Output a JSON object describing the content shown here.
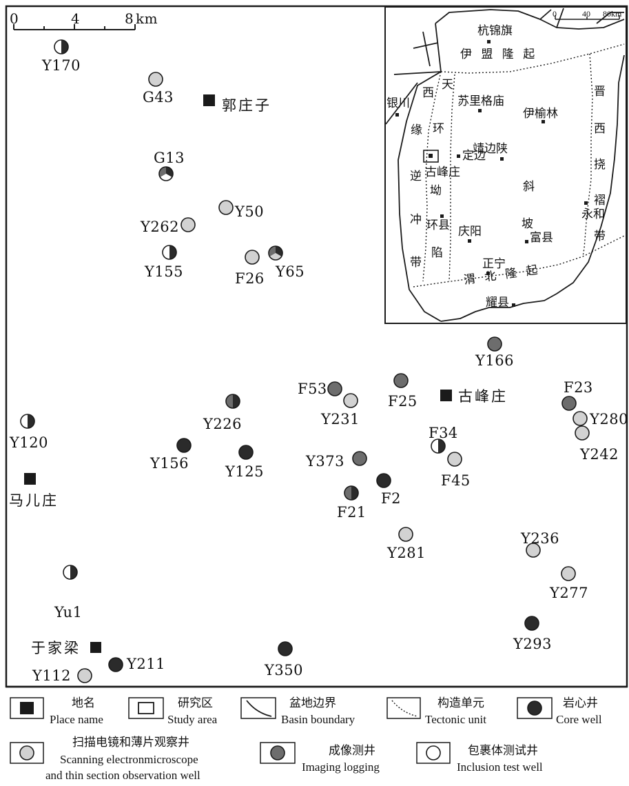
{
  "scale_bar": {
    "ticks": [
      "0",
      "4",
      "8"
    ],
    "unit": "km"
  },
  "place_names": [
    {
      "id": "guozhuangzi",
      "name": "郭庄子"
    },
    {
      "id": "gufengzhuang",
      "name": "古峰庄"
    },
    {
      "id": "maerzhuang",
      "name": "马儿庄"
    },
    {
      "id": "yujialiang",
      "name": "于家梁"
    }
  ],
  "wells": [
    {
      "name": "Y170",
      "type": "core+inclusion"
    },
    {
      "name": "G43",
      "type": "scanning"
    },
    {
      "name": "G13",
      "type": "core+imaging+inclusion"
    },
    {
      "name": "Y50",
      "type": "scanning"
    },
    {
      "name": "Y262",
      "type": "scanning"
    },
    {
      "name": "Y155",
      "type": "core+inclusion"
    },
    {
      "name": "F26",
      "type": "scanning"
    },
    {
      "name": "Y65",
      "type": "core+imaging+scanning"
    },
    {
      "name": "Y166",
      "type": "imaging"
    },
    {
      "name": "F53",
      "type": "imaging"
    },
    {
      "name": "Y231",
      "type": "scanning"
    },
    {
      "name": "F25",
      "type": "imaging"
    },
    {
      "name": "F23",
      "type": "imaging"
    },
    {
      "name": "Y280",
      "type": "scanning"
    },
    {
      "name": "Y242",
      "type": "scanning"
    },
    {
      "name": "Y226",
      "type": "core+imaging"
    },
    {
      "name": "Y120",
      "type": "core+inclusion"
    },
    {
      "name": "Y156",
      "type": "core"
    },
    {
      "name": "Y125",
      "type": "core"
    },
    {
      "name": "F34",
      "type": "core+inclusion"
    },
    {
      "name": "F45",
      "type": "scanning"
    },
    {
      "name": "Y373",
      "type": "imaging"
    },
    {
      "name": "F2",
      "type": "core"
    },
    {
      "name": "F21",
      "type": "core+imaging"
    },
    {
      "name": "Y281",
      "type": "scanning"
    },
    {
      "name": "Y236",
      "type": "scanning"
    },
    {
      "name": "Y277",
      "type": "scanning"
    },
    {
      "name": "Yu1",
      "type": "core+inclusion"
    },
    {
      "name": "Y293",
      "type": "core"
    },
    {
      "name": "Y350",
      "type": "core"
    },
    {
      "name": "Y211",
      "type": "core"
    },
    {
      "name": "Y112",
      "type": "scanning"
    }
  ],
  "inset": {
    "scale": {
      "ticks": [
        "0",
        "40",
        "80km"
      ]
    },
    "cities": [
      "杭锦旗",
      "银川",
      "苏里格庙",
      "伊榆林",
      "定边",
      "靖边陕",
      "古峰庄",
      "环县",
      "庆阳",
      "富县",
      "永和",
      "正宁",
      "耀县"
    ],
    "units": {
      "yimeng": "伊 盟 隆 起",
      "tianhuan_a": "天",
      "tianhuan_b": "环",
      "tianhuan_c": "坳",
      "tianhuan_d": "陷",
      "xiyuan_a": "西",
      "xiyuan_b": "缘",
      "xiyuan_c": "逆",
      "xiyuan_d": "冲",
      "xiyuan_e": "带",
      "slope_a": "斜",
      "slope_b": "坡",
      "jinxi_a": "晋",
      "jinxi_b": "西",
      "jinxi_c": "挠",
      "jinxi_d": "褶",
      "jinxi_e": "带",
      "weibei": "渭 北 隆 起"
    }
  },
  "colors": {
    "core": "#2b2b2b",
    "imaging": "#6d6d6d",
    "scanning": "#d2d2d2",
    "inclusion": "#ffffff",
    "line": "#1a1a1a"
  },
  "legend": [
    {
      "id": "place",
      "cn": "地名",
      "en": "Place name"
    },
    {
      "id": "study",
      "cn": "研究区",
      "en": "Study area"
    },
    {
      "id": "basin",
      "cn": "盆地边界",
      "en": "Basin boundary"
    },
    {
      "id": "tectonic",
      "cn": "构造单元",
      "en": "Tectonic unit"
    },
    {
      "id": "core",
      "cn": "岩心井",
      "en": "Core well"
    },
    {
      "id": "scanning",
      "cn": "扫描电镜和薄片观察井",
      "en": "Scanning electronmicroscope",
      "en2": "and thin section observation well"
    },
    {
      "id": "imaging",
      "cn": "成像测井",
      "en": "Imaging logging"
    },
    {
      "id": "inclusion",
      "cn": "包裹体测试井",
      "en": "Inclusion test well"
    }
  ]
}
